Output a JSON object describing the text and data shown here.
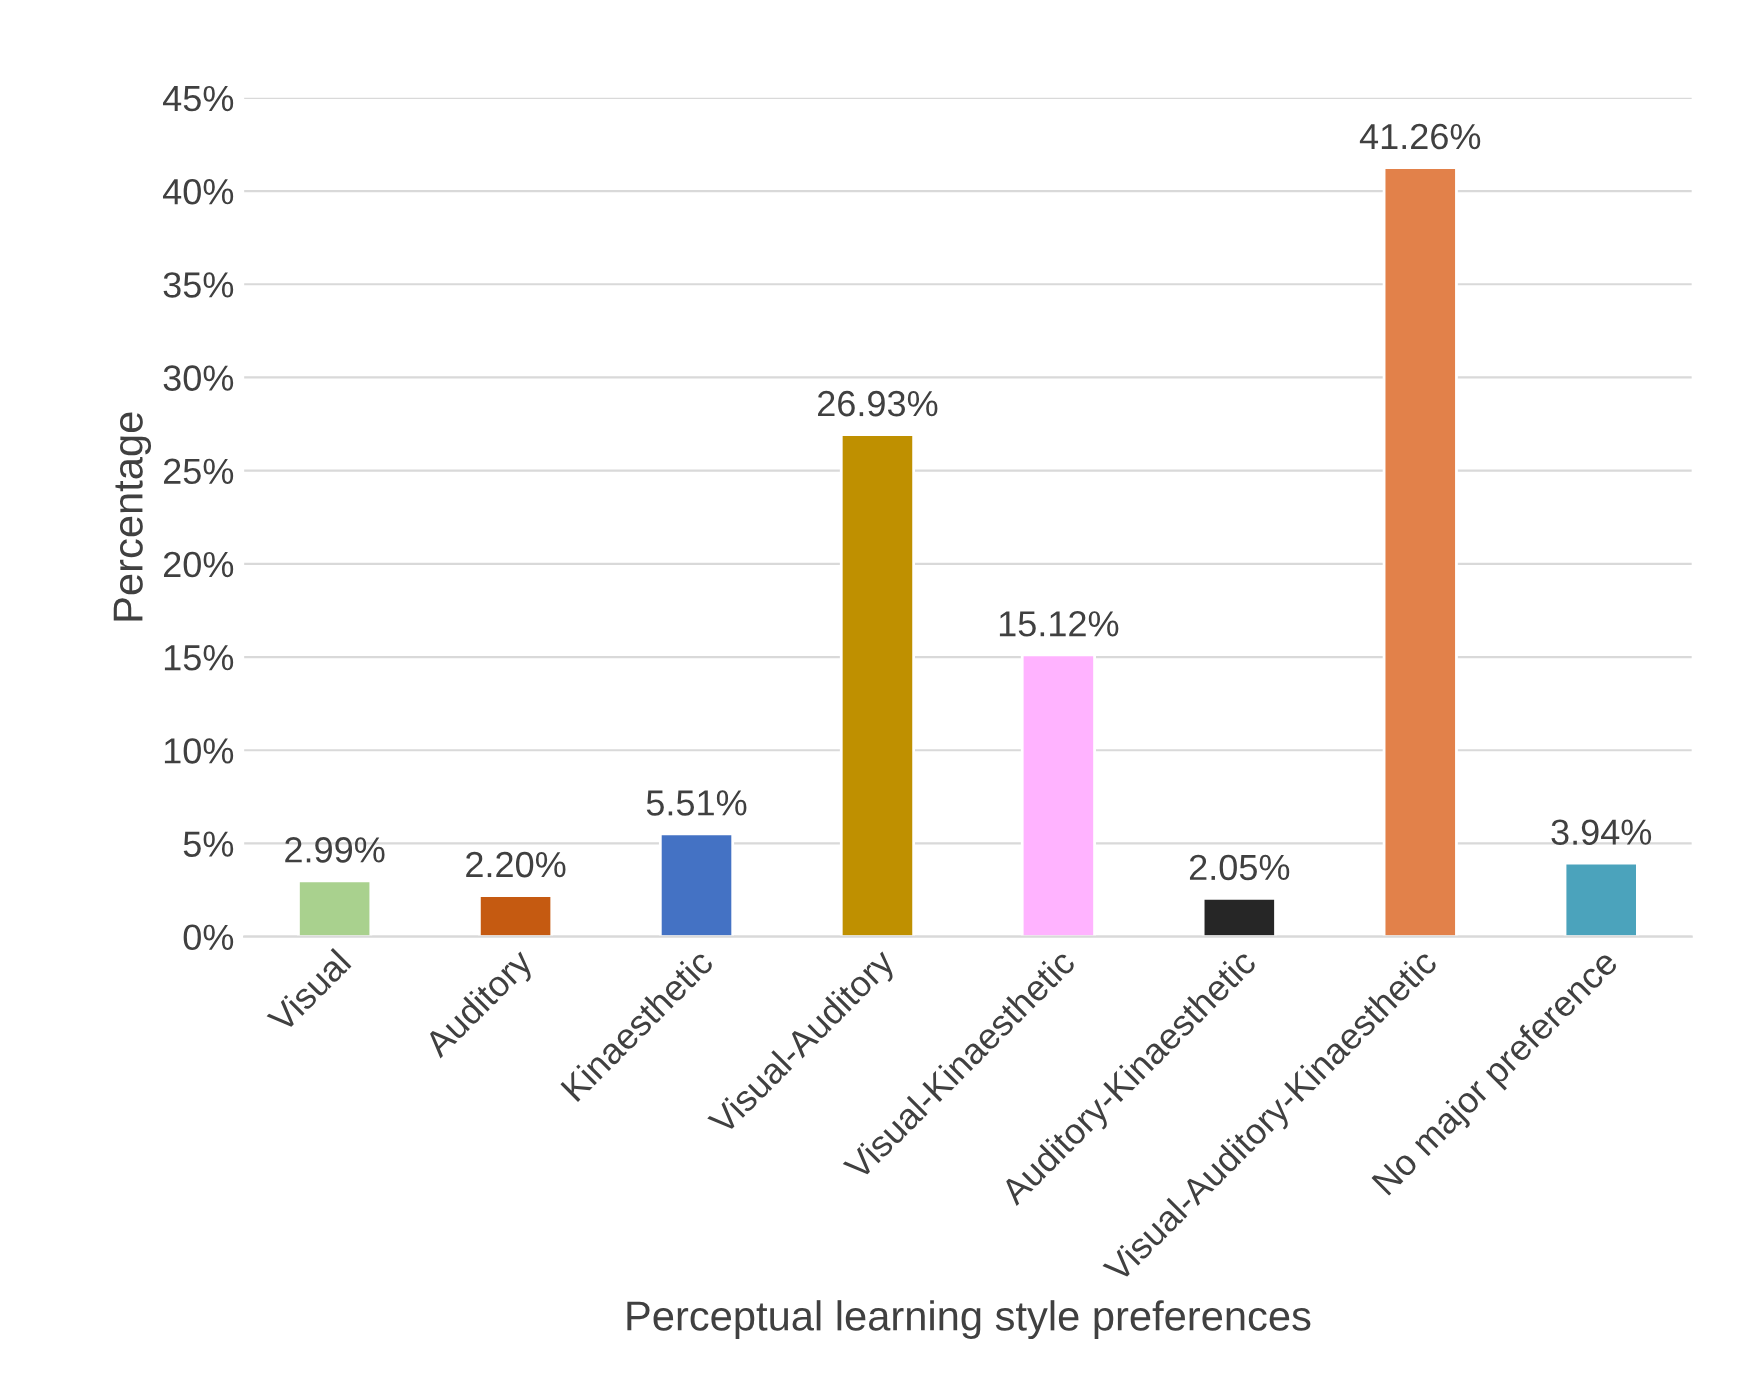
{
  "chart_data": {
    "type": "bar",
    "xlabel": "Perceptual learning style preferences",
    "ylabel": "Percentage",
    "categories": [
      "Visual",
      "Auditory",
      "Kinaesthetic",
      "Visual-Auditory",
      "Visual-Kinaesthetic",
      "Auditory-Kinaesthetic",
      "Visual-Auditory-Kinaesthetic",
      "No major preference"
    ],
    "values": [
      2.99,
      2.2,
      5.51,
      26.93,
      15.12,
      2.05,
      41.26,
      3.94
    ],
    "value_labels": [
      "2.99%",
      "2.20%",
      "5.51%",
      "26.93%",
      "15.12%",
      "2.05%",
      "41.26%",
      "3.94%"
    ],
    "colors": [
      "#a9d18e",
      "#c55a11",
      "#4472c4",
      "#bf9000",
      "#ffb3ff",
      "#262626",
      "#e2814a",
      "#4ba3bc"
    ],
    "ylim": [
      0,
      45
    ],
    "yticks": [
      {
        "value": 0,
        "label": "0%"
      },
      {
        "value": 5,
        "label": "5%"
      },
      {
        "value": 10,
        "label": "10%"
      },
      {
        "value": 15,
        "label": "15%"
      },
      {
        "value": 20,
        "label": "20%"
      },
      {
        "value": 25,
        "label": "25%"
      },
      {
        "value": 30,
        "label": "30%"
      },
      {
        "value": 35,
        "label": "35%"
      },
      {
        "value": 40,
        "label": "40%"
      },
      {
        "value": 45,
        "label": "45%"
      }
    ],
    "grid": "y",
    "legend": false
  }
}
